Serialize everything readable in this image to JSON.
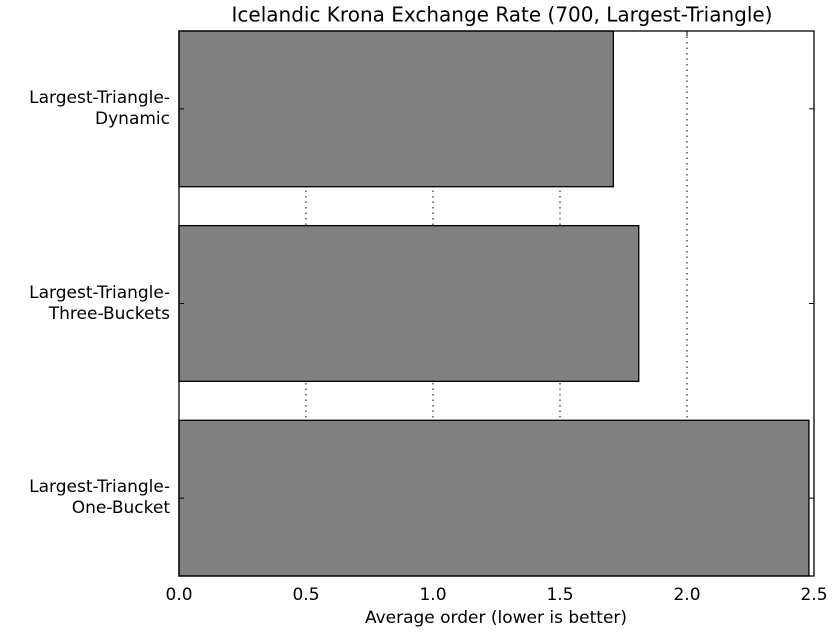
{
  "chart_data": {
    "type": "barh",
    "title": "Icelandic Krona Exchange Rate (700, Largest-Triangle)",
    "xlabel": "Average order (lower is better)",
    "categories": [
      "Largest-Triangle-\nDynamic",
      "Largest-Triangle-\nThree-Buckets",
      "Largest-Triangle-\nOne-Bucket"
    ],
    "values": [
      1.71,
      1.81,
      2.48
    ],
    "color": "#808080",
    "xlim": [
      0,
      2.5
    ],
    "xticks": [
      {
        "value": 0,
        "label": "0.0"
      },
      0.5,
      {
        "value": 1,
        "label": "1.0"
      },
      1.5,
      {
        "value": 2,
        "label": "2.0"
      },
      2.5
    ],
    "grid": true
  }
}
